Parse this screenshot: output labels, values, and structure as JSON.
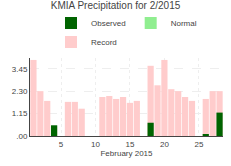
{
  "chart_data": {
    "type": "bar",
    "title": "KMIA Precipitation for 2/2015",
    "xlabel": "February 2015",
    "x": [
      1,
      2,
      3,
      4,
      5,
      6,
      7,
      8,
      9,
      10,
      11,
      12,
      13,
      14,
      15,
      16,
      17,
      18,
      19,
      20,
      21,
      22,
      23,
      24,
      25,
      26,
      27,
      28
    ],
    "series": [
      {
        "name": "Observed",
        "color": "#006400",
        "values": [
          0.0,
          0.0,
          0.0,
          0.55,
          0.0,
          0.0,
          0.0,
          0.0,
          0.0,
          0.0,
          0.0,
          0.0,
          0.0,
          0.0,
          0.0,
          0.0,
          0.0,
          0.68,
          0.0,
          0.0,
          0.0,
          0.0,
          0.0,
          0.0,
          0.0,
          0.1,
          0.0,
          1.2
        ]
      },
      {
        "name": "Normal",
        "color": "#90ee90",
        "values": [
          null,
          null,
          null,
          null,
          null,
          null,
          null,
          null,
          null,
          null,
          null,
          null,
          null,
          null,
          null,
          null,
          null,
          null,
          null,
          null,
          null,
          null,
          null,
          null,
          null,
          null,
          null,
          null
        ]
      },
      {
        "name": "Record",
        "color": "#ffcccc",
        "values": [
          3.9,
          2.3,
          1.8,
          0.5,
          0.0,
          1.75,
          1.75,
          1.4,
          0.0,
          0.0,
          2.0,
          2.05,
          1.9,
          2.0,
          1.7,
          1.8,
          0.0,
          3.6,
          2.6,
          3.9,
          2.4,
          2.3,
          2.0,
          1.8,
          0.0,
          1.9,
          2.3,
          2.3
        ]
      }
    ],
    "xlim": [
      0.5,
      28.5
    ],
    "xticks": [
      5,
      10,
      15,
      20,
      25
    ],
    "ylim": [
      0,
      4.0
    ],
    "yticks": [
      {
        "value": 0,
        "label": ".00"
      },
      1.15,
      {
        "value": 2.3,
        "label": "2.30"
      },
      3.45
    ],
    "grid": true,
    "legend": "upper center"
  }
}
